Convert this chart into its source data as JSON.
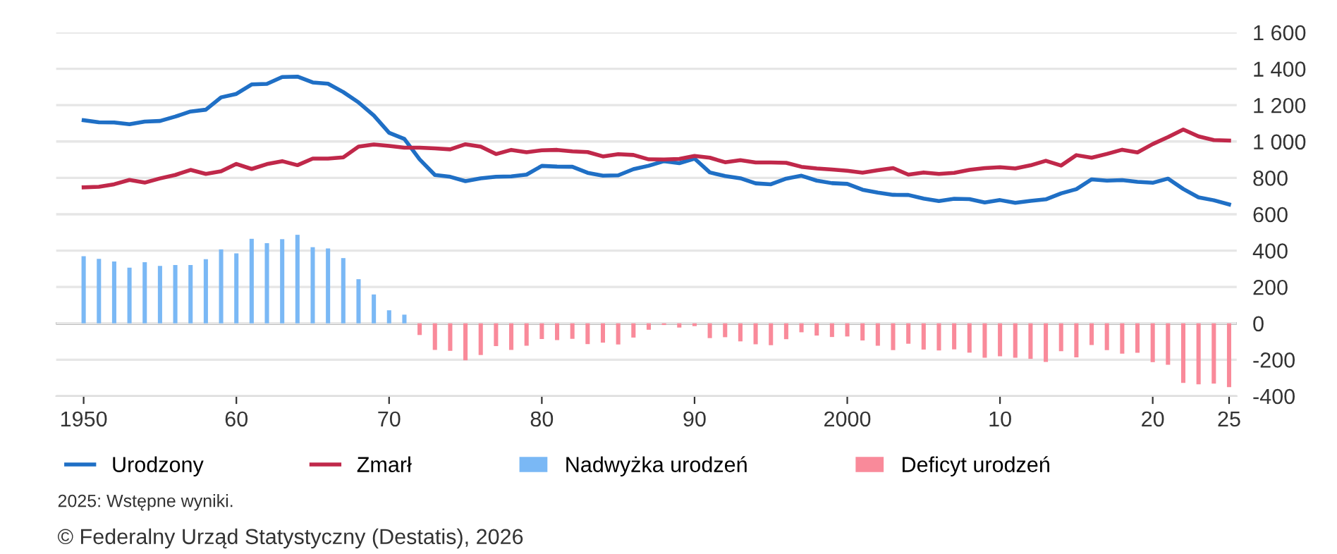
{
  "chart_data": {
    "type": "line",
    "x": [
      1950,
      1951,
      1952,
      1953,
      1954,
      1955,
      1956,
      1957,
      1958,
      1959,
      1960,
      1961,
      1962,
      1963,
      1964,
      1965,
      1966,
      1967,
      1968,
      1969,
      1970,
      1971,
      1972,
      1973,
      1974,
      1975,
      1976,
      1977,
      1978,
      1979,
      1980,
      1981,
      1982,
      1983,
      1984,
      1985,
      1986,
      1987,
      1988,
      1989,
      1990,
      1991,
      1992,
      1993,
      1994,
      1995,
      1996,
      1997,
      1998,
      1999,
      2000,
      2001,
      2002,
      2003,
      2004,
      2005,
      2006,
      2007,
      2008,
      2009,
      2010,
      2011,
      2012,
      2013,
      2014,
      2015,
      2016,
      2017,
      2018,
      2019,
      2020,
      2021,
      2022,
      2023,
      2024,
      2025
    ],
    "series": [
      {
        "name": "Nadwyżka urodzeń",
        "type": "bar",
        "color": "#7ab8f5",
        "values": [
          369,
          355,
          340,
          306,
          336,
          316,
          321,
          321,
          353,
          407,
          385,
          465,
          441,
          463,
          487,
          419,
          412,
          359,
          243,
          159,
          72,
          48,
          null,
          null,
          null,
          null,
          null,
          null,
          null,
          null,
          null,
          null,
          null,
          null,
          null,
          null,
          null,
          null,
          null,
          null,
          null,
          null,
          null,
          null,
          null,
          null,
          null,
          null,
          null,
          null,
          null,
          null,
          null,
          null,
          null,
          null,
          null,
          null,
          null,
          null,
          null,
          null,
          null,
          null,
          null,
          null,
          null,
          null,
          null,
          null,
          null,
          null,
          null,
          null,
          null,
          null
        ]
      },
      {
        "name": "Deficyt urodzeń",
        "type": "bar",
        "color": "#f98a9a",
        "values": [
          null,
          null,
          null,
          null,
          null,
          null,
          null,
          null,
          null,
          null,
          null,
          null,
          null,
          null,
          null,
          null,
          null,
          null,
          null,
          null,
          null,
          null,
          -64,
          -146,
          -151,
          -203,
          -174,
          -125,
          -146,
          -123,
          -86,
          -92,
          -85,
          -114,
          -106,
          -116,
          -78,
          -35,
          -9,
          -23,
          -15,
          -81,
          -76,
          -99,
          -115,
          -120,
          -87,
          -49,
          -67,
          -75,
          -72,
          -94,
          -123,
          -147,
          -112,
          -144,
          -149,
          -143,
          -161,
          -189,
          -181,
          -189,
          -195,
          -212,
          -153,
          -187,
          -119,
          -147,
          -167,
          -162,
          -213,
          -228,
          -327,
          -335,
          -331,
          -351
        ]
      },
      {
        "name": "Urodzony",
        "color": "#1f6fc5",
        "values": [
          1117,
          1106,
          1105,
          1095,
          1110,
          1113,
          1137,
          1165,
          1175,
          1243,
          1262,
          1314,
          1317,
          1355,
          1357,
          1325,
          1318,
          1272,
          1215,
          1143,
          1048,
          1014,
          902,
          816,
          806,
          782,
          798,
          806,
          808,
          818,
          866,
          862,
          861,
          828,
          812,
          814,
          848,
          867,
          892,
          881,
          906,
          830,
          810,
          798,
          770,
          765,
          796,
          812,
          785,
          771,
          767,
          735,
          719,
          707,
          706,
          686,
          673,
          685,
          683,
          665,
          678,
          663,
          674,
          682,
          715,
          738,
          792,
          785,
          788,
          778,
          773,
          796,
          739,
          693,
          677,
          654
        ]
      },
      {
        "name": "Zmarł",
        "color": "#c0284a",
        "values": [
          748,
          751,
          765,
          789,
          774,
          797,
          816,
          844,
          822,
          836,
          877,
          849,
          876,
          892,
          870,
          906,
          906,
          913,
          972,
          984,
          976,
          966,
          966,
          962,
          957,
          985,
          972,
          931,
          954,
          941,
          952,
          954,
          946,
          942,
          918,
          930,
          926,
          902,
          901,
          904,
          921,
          911,
          886,
          897,
          885,
          885,
          883,
          861,
          852,
          846,
          839,
          829,
          842,
          854,
          818,
          830,
          822,
          828,
          844,
          854,
          859,
          852,
          869,
          894,
          868,
          925,
          911,
          932,
          955,
          940,
          986,
          1024,
          1066,
          1028,
          1008,
          1005
        ]
      }
    ],
    "xlim": [
      1948.2,
      2025.5
    ],
    "xticks": [
      {
        "value": 1950,
        "label": "1950"
      },
      {
        "value": 1960,
        "label": "60"
      },
      {
        "value": 1970,
        "label": "70"
      },
      {
        "value": 1980,
        "label": "80"
      },
      {
        "value": 1990,
        "label": "90"
      },
      {
        "value": 2000,
        "label": "2000"
      },
      {
        "value": 2010,
        "label": "10"
      },
      {
        "value": 2020,
        "label": "20"
      },
      {
        "value": 2025,
        "label": "25"
      }
    ],
    "ylim": [
      -400,
      1600
    ],
    "yticks": [
      {
        "value": -400,
        "label": "-400"
      },
      {
        "value": -200,
        "label": "-200"
      },
      0,
      200,
      400,
      600,
      800,
      {
        "value": 1000,
        "label": "1 000"
      },
      {
        "value": 1200,
        "label": "1 200"
      },
      {
        "value": 1400,
        "label": "1 400"
      },
      {
        "value": 1600,
        "label": "1 600"
      }
    ],
    "ref_lines": [
      {
        "axis": "y",
        "value": 0,
        "color": "#333333"
      }
    ],
    "grid": "y",
    "legend": "bottom left",
    "annotations": [
      "2025: Wstępne wyniki.",
      "© Federalny Urząd Statystyczny (Destatis), 2026"
    ]
  }
}
